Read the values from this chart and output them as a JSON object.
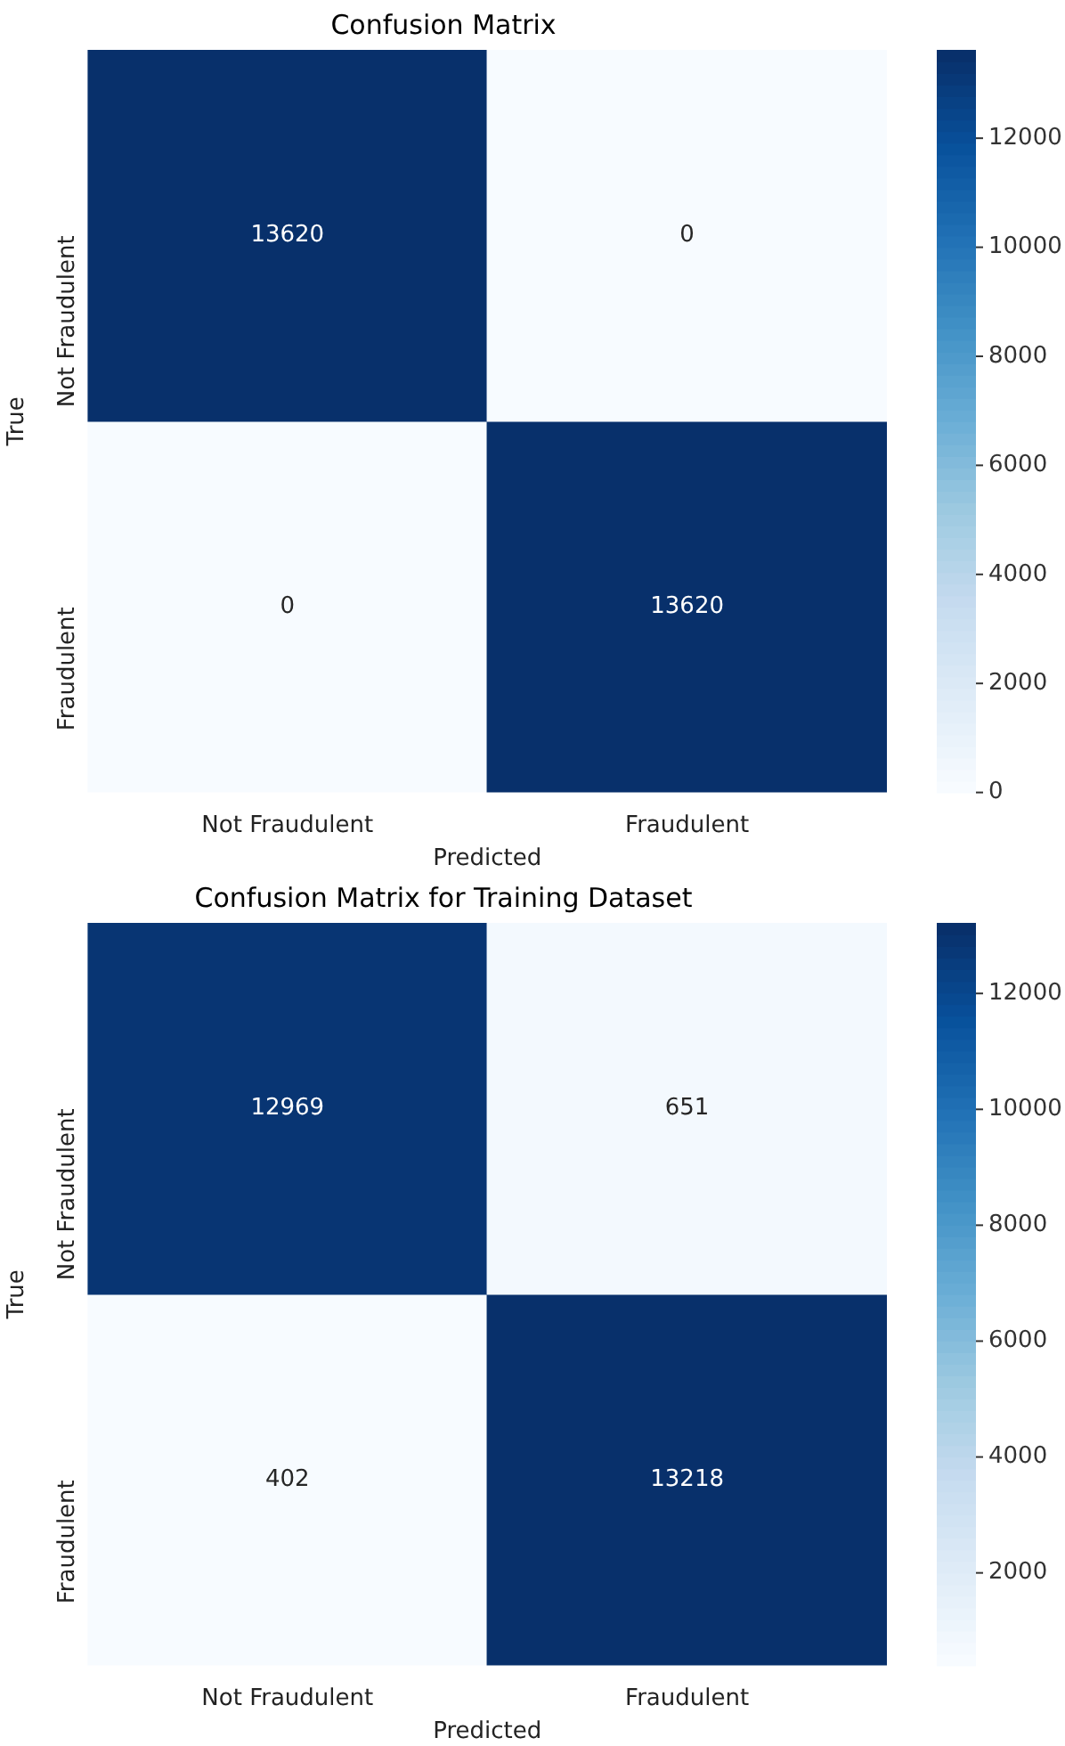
{
  "chart_data": [
    {
      "type": "heatmap",
      "title": "Confusion Matrix",
      "xlabel": "Predicted",
      "ylabel": "True",
      "categories": [
        "Not Fraudulent",
        "Fraudulent"
      ],
      "y_categories": [
        "Not Fraudulent",
        "Fraudulent"
      ],
      "cells": [
        [
          13620,
          0
        ],
        [
          0,
          13620
        ]
      ],
      "clim": [
        0,
        13620
      ],
      "cticks": [
        0,
        2000,
        4000,
        6000,
        8000,
        10000,
        12000
      ],
      "data_labels": true
    },
    {
      "type": "heatmap",
      "title": "Confusion Matrix for Training Dataset",
      "xlabel": "Predicted",
      "ylabel": "True",
      "categories": [
        "Not Fraudulent",
        "Fraudulent"
      ],
      "y_categories": [
        "Not Fraudulent",
        "Fraudulent"
      ],
      "cells": [
        [
          12969,
          651
        ],
        [
          402,
          13218
        ]
      ],
      "clim": [
        402,
        13218
      ],
      "cticks": [
        2000,
        4000,
        6000,
        8000,
        10000,
        12000
      ],
      "data_labels": true
    }
  ]
}
